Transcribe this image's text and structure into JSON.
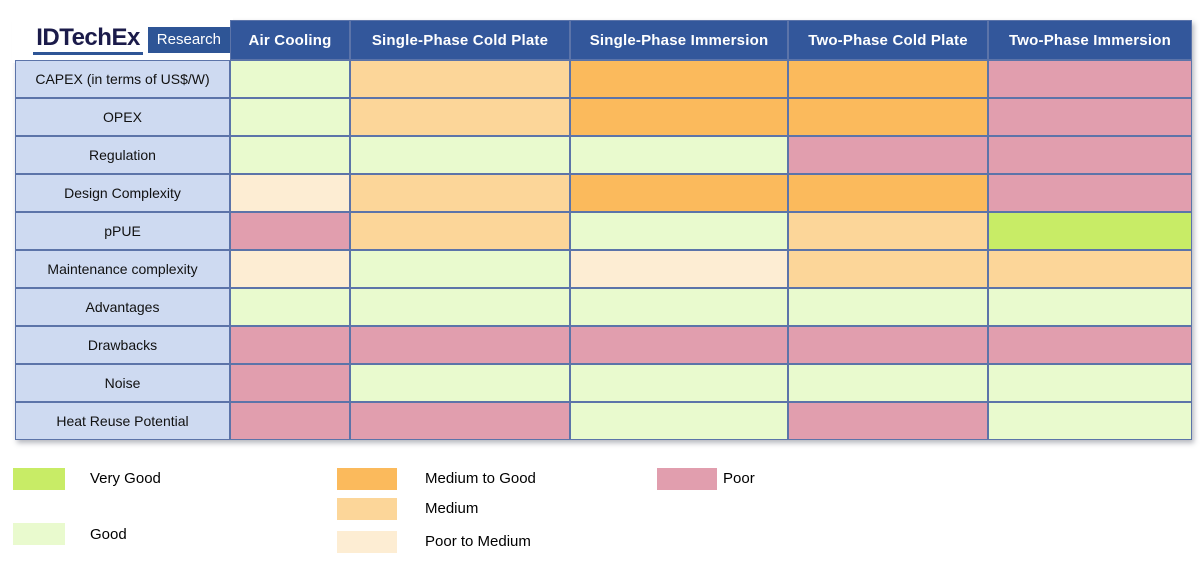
{
  "brand": {
    "name": "IDTechEx",
    "badge": "Research"
  },
  "chart_data": {
    "type": "heatmap",
    "columns": [
      "Air Cooling",
      "Single-Phase Cold Plate",
      "Single-Phase Immersion",
      "Two-Phase Cold Plate",
      "Two-Phase Immersion"
    ],
    "rows": [
      {
        "label": "CAPEX (in terms of US$/W)",
        "ratings": [
          "good",
          "medium",
          "medium_to_good",
          "medium_to_good",
          "poor"
        ]
      },
      {
        "label": "OPEX",
        "ratings": [
          "good",
          "medium",
          "medium_to_good",
          "medium_to_good",
          "poor"
        ]
      },
      {
        "label": "Regulation",
        "ratings": [
          "good",
          "good",
          "good",
          "poor",
          "poor"
        ]
      },
      {
        "label": "Design Complexity",
        "ratings": [
          "poor_to_medium",
          "medium",
          "medium_to_good",
          "medium_to_good",
          "poor"
        ]
      },
      {
        "label": "pPUE",
        "ratings": [
          "poor",
          "medium",
          "good",
          "medium",
          "very_good"
        ]
      },
      {
        "label": "Maintenance complexity",
        "ratings": [
          "poor_to_medium",
          "good",
          "poor_to_medium",
          "medium",
          "medium"
        ]
      },
      {
        "label": "Advantages",
        "ratings": [
          "good",
          "good",
          "good",
          "good",
          "good"
        ]
      },
      {
        "label": "Drawbacks",
        "ratings": [
          "poor",
          "poor",
          "poor",
          "poor",
          "poor"
        ]
      },
      {
        "label": "Noise",
        "ratings": [
          "poor",
          "good",
          "good",
          "good",
          "good"
        ]
      },
      {
        "label": "Heat Reuse Potential",
        "ratings": [
          "poor",
          "poor",
          "good",
          "poor",
          "good"
        ]
      }
    ],
    "legend": [
      {
        "key": "very_good",
        "label": "Very Good"
      },
      {
        "key": "good",
        "label": "Good"
      },
      {
        "key": "medium_to_good",
        "label": "Medium to Good"
      },
      {
        "key": "medium",
        "label": "Medium"
      },
      {
        "key": "poor_to_medium",
        "label": "Poor to Medium"
      },
      {
        "key": "poor",
        "label": "Poor"
      }
    ],
    "palette": {
      "very_good": "#C8EC66",
      "good": "#E9FACE",
      "medium_to_good": "#FBBA5C",
      "medium": "#FCD699",
      "poor_to_medium": "#FDEDD3",
      "poor": "#E19EAE",
      "header_bg": "#33579B",
      "row_label_bg": "#CEDAF1",
      "grid_border": "#5C74A9",
      "brand_navy": "#1B1B4A",
      "brand_blue": "#2E5596"
    }
  }
}
